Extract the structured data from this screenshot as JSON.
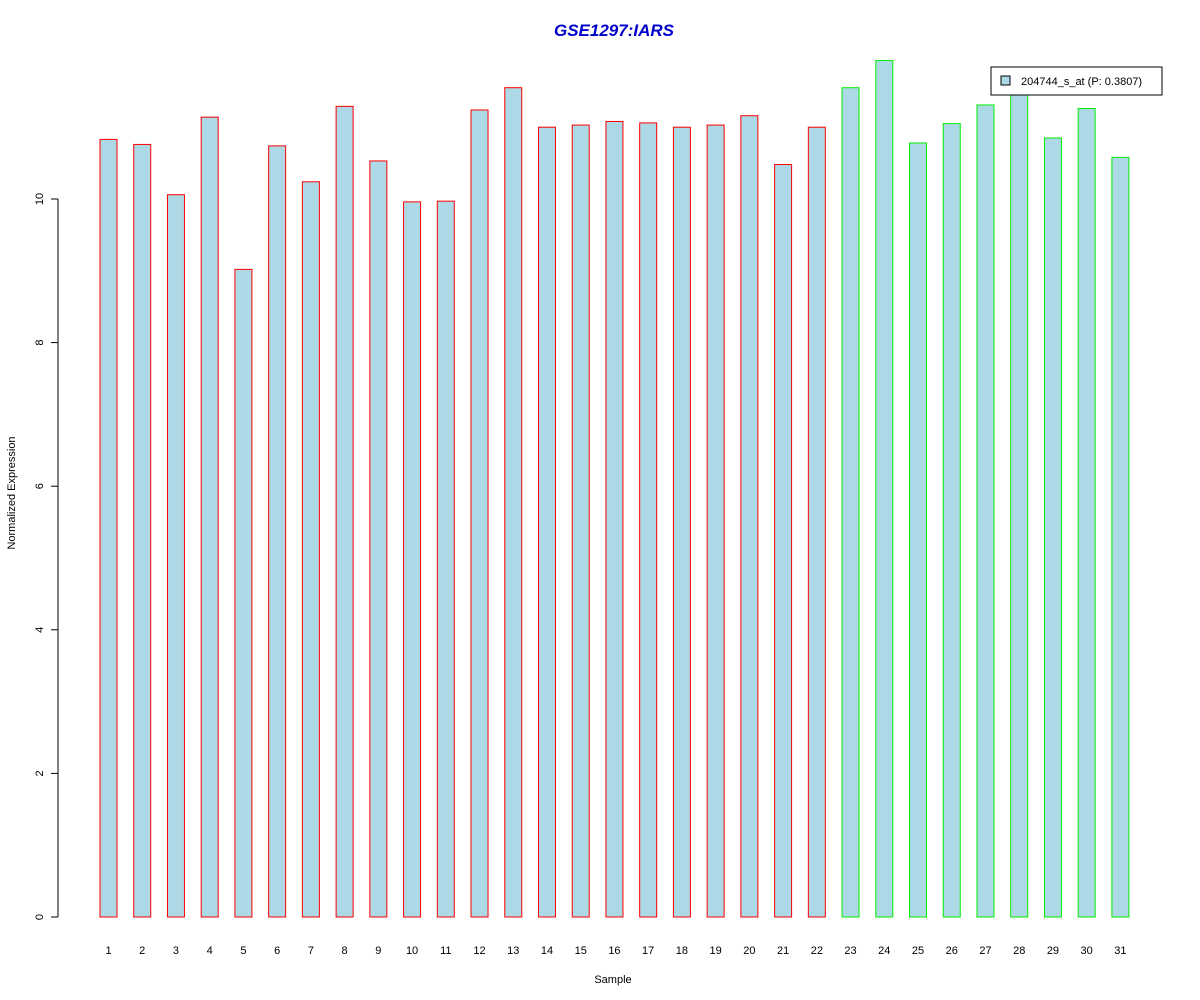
{
  "chart_data": {
    "type": "bar",
    "title": "GSE1297:IARS",
    "xlabel": "Sample",
    "ylabel": "Normalized Expression",
    "categories": [
      "1",
      "2",
      "3",
      "4",
      "5",
      "6",
      "7",
      "8",
      "9",
      "10",
      "11",
      "12",
      "13",
      "14",
      "15",
      "16",
      "17",
      "18",
      "19",
      "20",
      "21",
      "22",
      "23",
      "24",
      "25",
      "26",
      "27",
      "28",
      "29",
      "30",
      "31"
    ],
    "series": [
      {
        "name": "204744_s_at (P: 0.3807)",
        "values": [
          10.83,
          10.76,
          10.06,
          11.14,
          9.02,
          10.74,
          10.24,
          11.29,
          10.53,
          9.96,
          9.97,
          11.24,
          11.55,
          11.0,
          11.03,
          11.08,
          11.06,
          11.0,
          11.03,
          11.16,
          10.48,
          11.0,
          11.55,
          11.93,
          10.78,
          11.05,
          11.31,
          11.49,
          10.85,
          11.26,
          10.58
        ]
      }
    ],
    "group_border_colors": [
      "#ff0000",
      "#ff0000",
      "#ff0000",
      "#ff0000",
      "#ff0000",
      "#ff0000",
      "#ff0000",
      "#ff0000",
      "#ff0000",
      "#ff0000",
      "#ff0000",
      "#ff0000",
      "#ff0000",
      "#ff0000",
      "#ff0000",
      "#ff0000",
      "#ff0000",
      "#ff0000",
      "#ff0000",
      "#ff0000",
      "#ff0000",
      "#ff0000",
      "#00ee00",
      "#00ee00",
      "#00ee00",
      "#00ee00",
      "#00ee00",
      "#00ee00",
      "#00ee00",
      "#00ee00",
      "#00ee00"
    ],
    "bar_fill": "#add8e6",
    "title_color": "#0000cc",
    "yticks": [
      0,
      2,
      4,
      6,
      8,
      10
    ],
    "ylim": [
      0,
      12
    ],
    "grid": false,
    "legend_position": "top-right"
  }
}
